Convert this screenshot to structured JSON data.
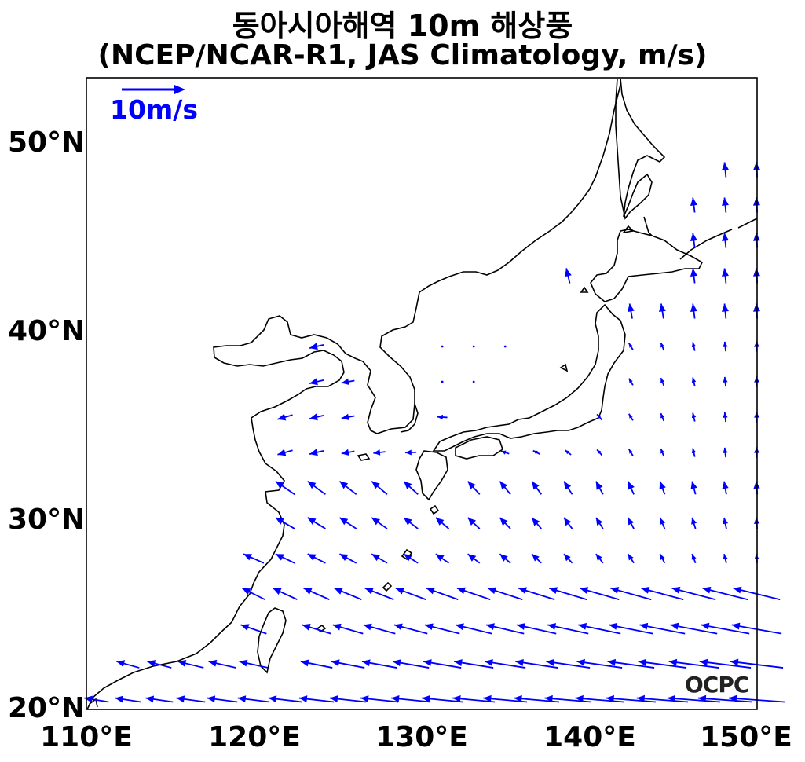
{
  "title_line1": "동아시아해역 10m 해상풍",
  "title_line2": "(NCEP/NCAR-R1, JAS Climatology, m/s)",
  "y_ticks": [
    "20°N",
    "30°N",
    "40°N",
    "50°N"
  ],
  "x_ticks": [
    "110°E",
    "120°E",
    "130°E",
    "140°E",
    "150°E"
  ],
  "reference_vector": {
    "label": "10m/s",
    "speed": 10
  },
  "logo": "OCPC",
  "colors": {
    "vectors": "#0000ff",
    "coastline": "#000000",
    "frame": "#000000"
  },
  "chart_data": {
    "type": "vector-field",
    "lon_range": [
      110,
      150
    ],
    "lat_range": [
      20,
      53.5
    ],
    "grid_step_deg": 1.875,
    "units": "m/s"
  }
}
